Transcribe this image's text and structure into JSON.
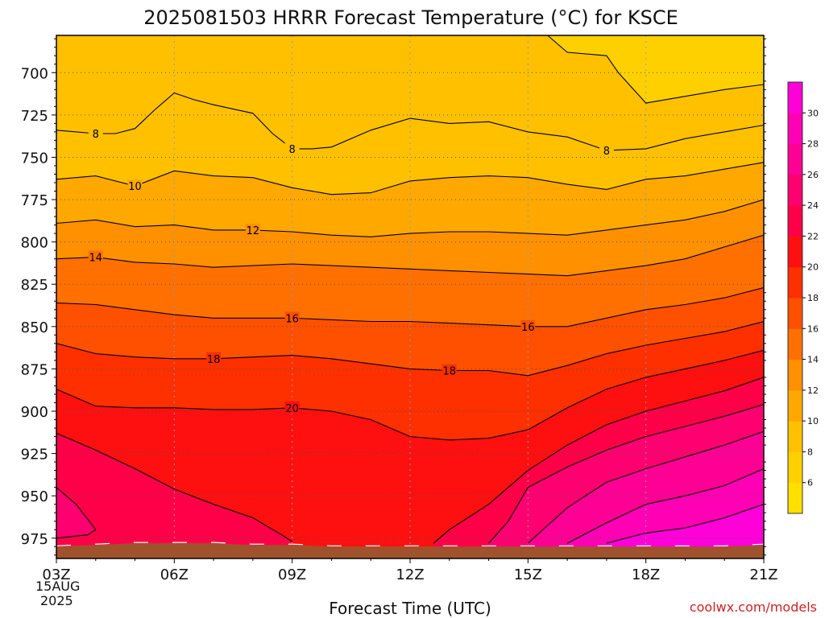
{
  "chart_data": {
    "type": "heatmap",
    "title": "2025081503 HRRR Forecast Temperature (°C) for KSCE",
    "xlabel": "Forecast Time (UTC)",
    "ylabel": "",
    "x_ticks": [
      "03Z",
      "06Z",
      "09Z",
      "12Z",
      "15Z",
      "18Z",
      "21Z"
    ],
    "x_hours": [
      3,
      6,
      9,
      12,
      15,
      18,
      21
    ],
    "x_date_lines": [
      "15AUG",
      "2025"
    ],
    "y_ticks": [
      700,
      725,
      750,
      775,
      800,
      825,
      850,
      875,
      900,
      925,
      950,
      975
    ],
    "ylim": [
      987,
      678
    ],
    "colorbar": {
      "ticks": [
        6,
        8,
        10,
        12,
        14,
        16,
        18,
        20,
        22,
        24,
        26,
        28,
        30
      ],
      "levels": [
        4,
        6,
        8,
        10,
        12,
        14,
        16,
        18,
        20,
        22,
        24,
        26,
        28,
        30,
        32
      ],
      "colors": [
        "#ffe000",
        "#ffd000",
        "#ffc000",
        "#ffa800",
        "#ff9000",
        "#ff7000",
        "#ff5000",
        "#ff3000",
        "#ff1010",
        "#ff0048",
        "#ff0070",
        "#ff0094",
        "#ff00b4",
        "#ff00d8"
      ]
    },
    "ground_color": "#a0522d",
    "contours": [
      {
        "level": 8,
        "label": "8",
        "label_at": [
          [
            4,
            736
          ],
          [
            9,
            745
          ],
          [
            17,
            746
          ]
        ],
        "points": [
          [
            3,
            734
          ],
          [
            4,
            736
          ],
          [
            4.5,
            736
          ],
          [
            5,
            733
          ],
          [
            5.5,
            722
          ],
          [
            6,
            712
          ],
          [
            6.5,
            716
          ],
          [
            7,
            719
          ],
          [
            8,
            724
          ],
          [
            8.5,
            736
          ],
          [
            9,
            745
          ],
          [
            9.5,
            745
          ],
          [
            10,
            744
          ],
          [
            11,
            734
          ],
          [
            12,
            727
          ],
          [
            13,
            730
          ],
          [
            14,
            729
          ],
          [
            15,
            735
          ],
          [
            16,
            738
          ],
          [
            17,
            746
          ],
          [
            18,
            745
          ],
          [
            19,
            739
          ],
          [
            20,
            735
          ],
          [
            21,
            731
          ]
        ]
      },
      {
        "level": 10,
        "label": "10",
        "label_at": [
          [
            5,
            767
          ]
        ],
        "points": [
          [
            3,
            763
          ],
          [
            4,
            761
          ],
          [
            5,
            767
          ],
          [
            6,
            758
          ],
          [
            7,
            761
          ],
          [
            8,
            762
          ],
          [
            9,
            768
          ],
          [
            10,
            772
          ],
          [
            11,
            771
          ],
          [
            12,
            764
          ],
          [
            13,
            762
          ],
          [
            14,
            761
          ],
          [
            15,
            762
          ],
          [
            16,
            766
          ],
          [
            17,
            769
          ],
          [
            18,
            763
          ],
          [
            19,
            761
          ],
          [
            20,
            757
          ],
          [
            21,
            753
          ]
        ]
      },
      {
        "level": 12,
        "label": "12",
        "label_at": [
          [
            8,
            793
          ]
        ],
        "points": [
          [
            3,
            789
          ],
          [
            4,
            787
          ],
          [
            5,
            791
          ],
          [
            6,
            790
          ],
          [
            7,
            793
          ],
          [
            8,
            793
          ],
          [
            9,
            794
          ],
          [
            10,
            796
          ],
          [
            11,
            797
          ],
          [
            12,
            795
          ],
          [
            13,
            794
          ],
          [
            14,
            794
          ],
          [
            15,
            795
          ],
          [
            16,
            796
          ],
          [
            17,
            793
          ],
          [
            18,
            790
          ],
          [
            19,
            787
          ],
          [
            20,
            782
          ],
          [
            21,
            775
          ]
        ]
      },
      {
        "level": 14,
        "label": "14",
        "label_at": [
          [
            4,
            809
          ]
        ],
        "points": [
          [
            3,
            810
          ],
          [
            4,
            809
          ],
          [
            5,
            812
          ],
          [
            6,
            813
          ],
          [
            7,
            815
          ],
          [
            8,
            814
          ],
          [
            9,
            813
          ],
          [
            10,
            814
          ],
          [
            11,
            815
          ],
          [
            12,
            816
          ],
          [
            13,
            817
          ],
          [
            14,
            818
          ],
          [
            15,
            819
          ],
          [
            16,
            820
          ],
          [
            17,
            817
          ],
          [
            18,
            814
          ],
          [
            19,
            810
          ],
          [
            20,
            803
          ],
          [
            21,
            796
          ]
        ]
      },
      {
        "level": 16,
        "label": "16",
        "label_at": [
          [
            9,
            845
          ],
          [
            15,
            850
          ]
        ],
        "points": [
          [
            3,
            836
          ],
          [
            4,
            837
          ],
          [
            5,
            840
          ],
          [
            6,
            843
          ],
          [
            7,
            845
          ],
          [
            8,
            845
          ],
          [
            9,
            845
          ],
          [
            10,
            846
          ],
          [
            11,
            847
          ],
          [
            12,
            847
          ],
          [
            13,
            848
          ],
          [
            14,
            849
          ],
          [
            15,
            850
          ],
          [
            16,
            850
          ],
          [
            17,
            845
          ],
          [
            18,
            840
          ],
          [
            19,
            837
          ],
          [
            20,
            833
          ],
          [
            21,
            827
          ]
        ]
      },
      {
        "level": 18,
        "label": "18",
        "label_at": [
          [
            7,
            869
          ],
          [
            13,
            876
          ]
        ],
        "points": [
          [
            3,
            860
          ],
          [
            4,
            866
          ],
          [
            5,
            868
          ],
          [
            6,
            869
          ],
          [
            7,
            869
          ],
          [
            8,
            868
          ],
          [
            9,
            867
          ],
          [
            10,
            869
          ],
          [
            11,
            872
          ],
          [
            12,
            875
          ],
          [
            13,
            876
          ],
          [
            14,
            876
          ],
          [
            15,
            879
          ],
          [
            16,
            873
          ],
          [
            17,
            866
          ],
          [
            18,
            861
          ],
          [
            19,
            857
          ],
          [
            20,
            853
          ],
          [
            21,
            847
          ]
        ]
      },
      {
        "level": 20,
        "label": "20",
        "label_at": [
          [
            9,
            898
          ]
        ],
        "points": [
          [
            3,
            887
          ],
          [
            4,
            897
          ],
          [
            5,
            898
          ],
          [
            6,
            898
          ],
          [
            7,
            899
          ],
          [
            8,
            899
          ],
          [
            9,
            898
          ],
          [
            10,
            900
          ],
          [
            11,
            905
          ],
          [
            12,
            915
          ],
          [
            13,
            917
          ],
          [
            14,
            916
          ],
          [
            15,
            911
          ],
          [
            16,
            898
          ],
          [
            17,
            887
          ],
          [
            18,
            880
          ],
          [
            19,
            875
          ],
          [
            20,
            870
          ],
          [
            21,
            864
          ]
        ]
      },
      {
        "level": 22,
        "label": "",
        "label_at": [],
        "points": [
          [
            3,
            913
          ],
          [
            4,
            923
          ],
          [
            5,
            934
          ],
          [
            6,
            946
          ],
          [
            7,
            955
          ],
          [
            8,
            963
          ],
          [
            8.8,
            974
          ],
          [
            9,
            977
          ],
          null,
          [
            12.6,
            978
          ],
          [
            13,
            970
          ],
          [
            14,
            955
          ],
          [
            15,
            935
          ],
          [
            16,
            920
          ],
          [
            17,
            908
          ],
          [
            18,
            900
          ],
          [
            19,
            894
          ],
          [
            20,
            888
          ],
          [
            21,
            880
          ]
        ]
      },
      {
        "level": 24,
        "label": "",
        "label_at": [],
        "points": [
          [
            3,
            945
          ],
          [
            3.5,
            955
          ],
          [
            4,
            970
          ],
          [
            3.8,
            973
          ],
          [
            3,
            975
          ],
          null,
          [
            14,
            978
          ],
          [
            14.5,
            965
          ],
          [
            15,
            945
          ],
          [
            16,
            933
          ],
          [
            17,
            923
          ],
          [
            18,
            915
          ],
          [
            19,
            909
          ],
          [
            20,
            903
          ],
          [
            21,
            896
          ]
        ]
      },
      {
        "level": 26,
        "label": "",
        "label_at": [],
        "points": [
          [
            15,
            978
          ],
          [
            16,
            957
          ],
          [
            17,
            942
          ],
          [
            18,
            934
          ],
          [
            19,
            927
          ],
          [
            20,
            920
          ],
          [
            21,
            912
          ]
        ]
      },
      {
        "level": 28,
        "label": "",
        "label_at": [],
        "points": [
          [
            16,
            978
          ],
          [
            17,
            966
          ],
          [
            18,
            955
          ],
          [
            19,
            950
          ],
          [
            20,
            944
          ],
          [
            21,
            934
          ]
        ]
      },
      {
        "level": 30,
        "label": "",
        "label_at": [],
        "points": [
          [
            17,
            978
          ],
          [
            18,
            972
          ],
          [
            19,
            969
          ],
          [
            20,
            963
          ],
          [
            21,
            955
          ]
        ]
      },
      {
        "level": 6,
        "label": "",
        "label_at": [],
        "points": [
          [
            15.5,
            678
          ],
          [
            16,
            688
          ],
          [
            17,
            690
          ],
          [
            17.3,
            700
          ],
          [
            18,
            718
          ],
          [
            19,
            714
          ],
          [
            20,
            710
          ],
          [
            21,
            707
          ]
        ]
      }
    ],
    "surface": {
      "points": [
        [
          3,
          980
        ],
        [
          4,
          979
        ],
        [
          5,
          978
        ],
        [
          6,
          978
        ],
        [
          7,
          978
        ],
        [
          8,
          979
        ],
        [
          9,
          979
        ],
        [
          10,
          980
        ],
        [
          11,
          980
        ],
        [
          12,
          980
        ],
        [
          13,
          980
        ],
        [
          14,
          980
        ],
        [
          15,
          980
        ],
        [
          16,
          980
        ],
        [
          17,
          980
        ],
        [
          18,
          980
        ],
        [
          19,
          980
        ],
        [
          20,
          980
        ],
        [
          21,
          979
        ]
      ]
    },
    "credit": "coolwx.com/models"
  }
}
